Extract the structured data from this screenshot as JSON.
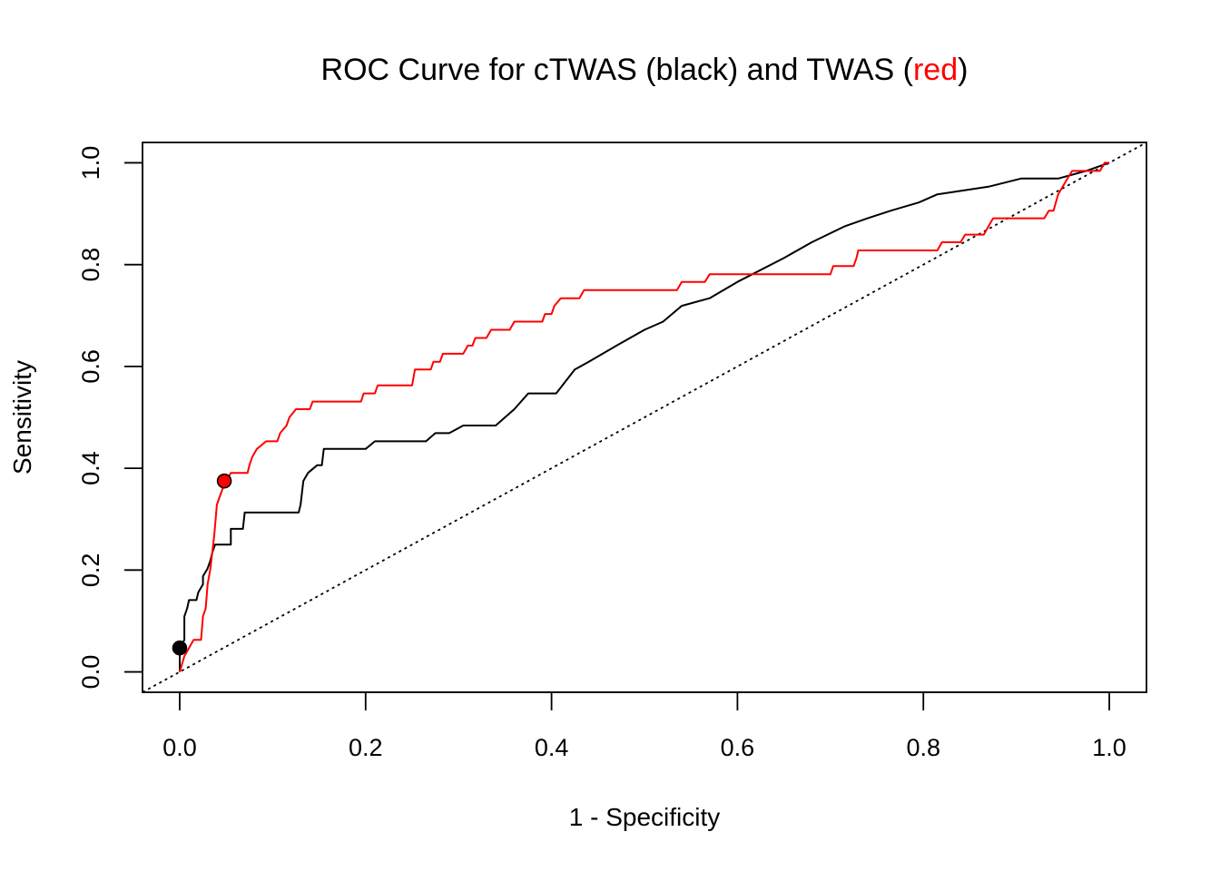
{
  "chart_data": {
    "type": "line",
    "title": {
      "prefix": "ROC Curve for cTWAS (black) and TWAS (",
      "highlight": "red",
      "suffix": ")"
    },
    "xlabel": "1 - Specificity",
    "ylabel": "Sensitivity",
    "xlim": [
      -0.04,
      1.04
    ],
    "ylim": [
      -0.04,
      1.04
    ],
    "xticks": [
      "0.0",
      "0.2",
      "0.4",
      "0.6",
      "0.8",
      "1.0"
    ],
    "yticks": [
      "0.0",
      "0.2",
      "0.4",
      "0.6",
      "0.8",
      "1.0"
    ],
    "grid": false,
    "colors": {
      "ctwas": "#000000",
      "twas": "#ff0000",
      "reference": "#000000"
    },
    "series": [
      {
        "key": "ctwas",
        "points": [
          [
            0.0,
            0.0
          ],
          [
            0.0,
            0.047
          ],
          [
            0.005,
            0.063
          ],
          [
            0.005,
            0.109
          ],
          [
            0.008,
            0.125
          ],
          [
            0.01,
            0.141
          ],
          [
            0.018,
            0.141
          ],
          [
            0.02,
            0.156
          ],
          [
            0.025,
            0.172
          ],
          [
            0.025,
            0.188
          ],
          [
            0.03,
            0.203
          ],
          [
            0.033,
            0.219
          ],
          [
            0.035,
            0.234
          ],
          [
            0.038,
            0.25
          ],
          [
            0.055,
            0.25
          ],
          [
            0.055,
            0.281
          ],
          [
            0.068,
            0.281
          ],
          [
            0.07,
            0.313
          ],
          [
            0.128,
            0.313
          ],
          [
            0.13,
            0.328
          ],
          [
            0.133,
            0.375
          ],
          [
            0.138,
            0.391
          ],
          [
            0.148,
            0.406
          ],
          [
            0.153,
            0.406
          ],
          [
            0.155,
            0.438
          ],
          [
            0.2,
            0.438
          ],
          [
            0.21,
            0.453
          ],
          [
            0.265,
            0.453
          ],
          [
            0.275,
            0.469
          ],
          [
            0.29,
            0.469
          ],
          [
            0.305,
            0.484
          ],
          [
            0.34,
            0.484
          ],
          [
            0.36,
            0.516
          ],
          [
            0.375,
            0.547
          ],
          [
            0.405,
            0.547
          ],
          [
            0.425,
            0.594
          ],
          [
            0.44,
            0.609
          ],
          [
            0.47,
            0.641
          ],
          [
            0.5,
            0.672
          ],
          [
            0.52,
            0.688
          ],
          [
            0.54,
            0.719
          ],
          [
            0.57,
            0.734
          ],
          [
            0.6,
            0.766
          ],
          [
            0.65,
            0.813
          ],
          [
            0.68,
            0.844
          ],
          [
            0.715,
            0.875
          ],
          [
            0.74,
            0.891
          ],
          [
            0.765,
            0.906
          ],
          [
            0.795,
            0.922
          ],
          [
            0.815,
            0.938
          ],
          [
            0.87,
            0.953
          ],
          [
            0.905,
            0.969
          ],
          [
            0.945,
            0.969
          ],
          [
            0.975,
            0.984
          ],
          [
            1.0,
            1.0
          ]
        ],
        "highlight_point": [
          0.0,
          0.047
        ]
      },
      {
        "key": "twas",
        "points": [
          [
            0.0,
            0.0
          ],
          [
            0.005,
            0.031
          ],
          [
            0.01,
            0.047
          ],
          [
            0.015,
            0.063
          ],
          [
            0.023,
            0.063
          ],
          [
            0.025,
            0.109
          ],
          [
            0.028,
            0.125
          ],
          [
            0.03,
            0.172
          ],
          [
            0.033,
            0.203
          ],
          [
            0.035,
            0.234
          ],
          [
            0.037,
            0.266
          ],
          [
            0.04,
            0.328
          ],
          [
            0.043,
            0.344
          ],
          [
            0.046,
            0.359
          ],
          [
            0.05,
            0.375
          ],
          [
            0.055,
            0.391
          ],
          [
            0.073,
            0.391
          ],
          [
            0.075,
            0.406
          ],
          [
            0.078,
            0.422
          ],
          [
            0.083,
            0.438
          ],
          [
            0.093,
            0.453
          ],
          [
            0.105,
            0.453
          ],
          [
            0.108,
            0.469
          ],
          [
            0.115,
            0.484
          ],
          [
            0.118,
            0.5
          ],
          [
            0.125,
            0.516
          ],
          [
            0.14,
            0.516
          ],
          [
            0.143,
            0.531
          ],
          [
            0.195,
            0.531
          ],
          [
            0.198,
            0.547
          ],
          [
            0.21,
            0.547
          ],
          [
            0.213,
            0.563
          ],
          [
            0.25,
            0.563
          ],
          [
            0.253,
            0.594
          ],
          [
            0.27,
            0.594
          ],
          [
            0.273,
            0.609
          ],
          [
            0.28,
            0.609
          ],
          [
            0.283,
            0.625
          ],
          [
            0.305,
            0.625
          ],
          [
            0.31,
            0.641
          ],
          [
            0.315,
            0.641
          ],
          [
            0.318,
            0.656
          ],
          [
            0.33,
            0.656
          ],
          [
            0.335,
            0.672
          ],
          [
            0.355,
            0.672
          ],
          [
            0.36,
            0.688
          ],
          [
            0.39,
            0.688
          ],
          [
            0.393,
            0.703
          ],
          [
            0.4,
            0.703
          ],
          [
            0.403,
            0.719
          ],
          [
            0.41,
            0.734
          ],
          [
            0.43,
            0.734
          ],
          [
            0.435,
            0.75
          ],
          [
            0.535,
            0.75
          ],
          [
            0.54,
            0.766
          ],
          [
            0.565,
            0.766
          ],
          [
            0.57,
            0.781
          ],
          [
            0.7,
            0.781
          ],
          [
            0.703,
            0.797
          ],
          [
            0.725,
            0.797
          ],
          [
            0.728,
            0.813
          ],
          [
            0.73,
            0.828
          ],
          [
            0.815,
            0.828
          ],
          [
            0.82,
            0.844
          ],
          [
            0.84,
            0.844
          ],
          [
            0.845,
            0.859
          ],
          [
            0.865,
            0.859
          ],
          [
            0.87,
            0.875
          ],
          [
            0.875,
            0.891
          ],
          [
            0.93,
            0.891
          ],
          [
            0.935,
            0.906
          ],
          [
            0.94,
            0.906
          ],
          [
            0.945,
            0.938
          ],
          [
            0.955,
            0.969
          ],
          [
            0.96,
            0.984
          ],
          [
            0.99,
            0.984
          ],
          [
            0.995,
            1.0
          ],
          [
            1.0,
            1.0
          ]
        ],
        "highlight_point": [
          0.048,
          0.375
        ]
      }
    ]
  }
}
